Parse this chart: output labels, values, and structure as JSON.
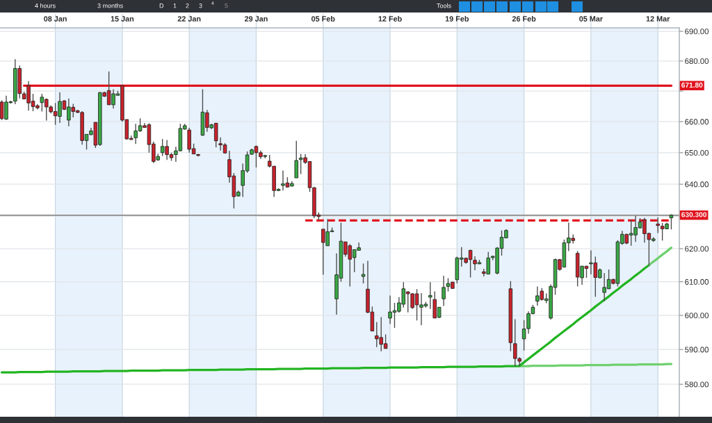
{
  "chart_data": {
    "type": "candlestick",
    "categories": [
      null,
      null,
      null,
      null,
      null,
      null,
      null,
      null,
      null,
      null,
      null,
      null,
      "08 Jan",
      null,
      null,
      null,
      null,
      null,
      null,
      null,
      null,
      null,
      null,
      null,
      null,
      null,
      null,
      "15 Jan",
      null,
      null,
      null,
      null,
      null,
      null,
      null,
      null,
      null,
      null,
      null,
      null,
      null,
      null,
      "22 Jan",
      null,
      null,
      null,
      null,
      null,
      null,
      null,
      null,
      null,
      null,
      null,
      null,
      null,
      null,
      "29 Jan",
      null,
      null,
      null,
      null,
      null,
      null,
      null,
      null,
      null,
      null,
      null,
      null,
      null,
      null,
      "05 Feb",
      null,
      null,
      null,
      null,
      null,
      null,
      null,
      null,
      null,
      null,
      null,
      null,
      null,
      null,
      "12 Feb",
      null,
      null,
      null,
      null,
      null,
      null,
      null,
      null,
      null,
      null,
      null,
      null,
      null,
      null,
      "19 Feb",
      null,
      null,
      null,
      null,
      null,
      null,
      null,
      null,
      null,
      null,
      null,
      null,
      null,
      null,
      "26 Feb",
      null,
      null,
      null,
      null,
      null,
      null,
      null,
      null,
      null,
      null,
      null,
      null,
      null,
      null,
      "05 Mar",
      null,
      null,
      null,
      null,
      null,
      null,
      null,
      null,
      null,
      null,
      null,
      null,
      null,
      null,
      "12 Mar",
      null,
      null,
      null
    ],
    "ohlc": [
      [
        666.4,
        667.0,
        660.5,
        661.0
      ],
      [
        660.8,
        668.5,
        660.6,
        666.4
      ],
      [
        666.2,
        666.8,
        665.9,
        666.5
      ],
      [
        666.7,
        680.6,
        665.7,
        677.5
      ],
      [
        677.5,
        678.5,
        667.6,
        669.2
      ],
      [
        669.1,
        669.8,
        667.3,
        667.4
      ],
      [
        671.8,
        673.3,
        663.6,
        666.1
      ],
      [
        666.7,
        669.1,
        663.4,
        664.9
      ],
      [
        665.2,
        665.7,
        664.0,
        664.5
      ],
      [
        666.2,
        669.1,
        663.3,
        668.0
      ],
      [
        667.3,
        667.6,
        660.4,
        664.8
      ],
      [
        664.8,
        665.3,
        662.7,
        663.2
      ],
      [
        663.3,
        666.1,
        659.0,
        661.9
      ],
      [
        661.7,
        669.6,
        659.6,
        666.6
      ],
      [
        666.8,
        667.0,
        663.8,
        664.0
      ],
      [
        660.5,
        667.6,
        658.5,
        664.8
      ],
      [
        664.7,
        665.8,
        661.4,
        663.3
      ],
      [
        663.6,
        663.8,
        662.8,
        663.0
      ],
      [
        663.0,
        663.4,
        652.6,
        653.9
      ],
      [
        653.9,
        655.9,
        651.0,
        655.9
      ],
      [
        655.8,
        658.0,
        655.6,
        657.0
      ],
      [
        659.8,
        659.8,
        651.5,
        652.4
      ],
      [
        652.6,
        669.7,
        652.2,
        669.5
      ],
      [
        669.5,
        669.8,
        668.1,
        668.3
      ],
      [
        670.2,
        676.5,
        665.5,
        665.5
      ],
      [
        665.5,
        670.6,
        664.3,
        669.1
      ],
      [
        668.6,
        670.1,
        668.6,
        669.1
      ],
      [
        671.8,
        671.9,
        660.0,
        660.5
      ],
      [
        660.7,
        660.7,
        654.3,
        654.4
      ],
      [
        654.6,
        655.5,
        654.2,
        654.2
      ],
      [
        654.8,
        659.3,
        652.8,
        657.0
      ],
      [
        657.0,
        661.1,
        656.7,
        658.7
      ],
      [
        658.7,
        659.5,
        658.1,
        658.1
      ],
      [
        659.0,
        659.5,
        650.0,
        652.6
      ],
      [
        652.8,
        653.6,
        646.7,
        647.2
      ],
      [
        647.7,
        649.6,
        647.4,
        648.8
      ],
      [
        650.0,
        654.4,
        648.9,
        652.0
      ],
      [
        652.0,
        654.1,
        647.7,
        649.4
      ],
      [
        649.4,
        650.0,
        647.4,
        648.4
      ],
      [
        649.4,
        651.9,
        647.1,
        650.6
      ],
      [
        650.6,
        659.3,
        650.4,
        657.8
      ],
      [
        657.6,
        659.3,
        657.4,
        658.7
      ],
      [
        657.3,
        658.0,
        650.0,
        651.1
      ],
      [
        651.3,
        652.9,
        649.6,
        649.6
      ],
      [
        649.4,
        649.6,
        648.8,
        649.1
      ],
      [
        655.6,
        670.6,
        655.4,
        663.1
      ],
      [
        662.9,
        663.8,
        656.7,
        658.1
      ],
      [
        658.0,
        659.3,
        657.6,
        659.0
      ],
      [
        659.5,
        659.6,
        651.7,
        653.8
      ],
      [
        652.9,
        654.9,
        650.7,
        652.5
      ],
      [
        652.5,
        653.1,
        649.7,
        649.9
      ],
      [
        647.8,
        650.6,
        640.5,
        642.3
      ],
      [
        642.6,
        643.5,
        632.4,
        636.1
      ],
      [
        636.3,
        638.0,
        636.1,
        637.5
      ],
      [
        639.6,
        646.5,
        636.0,
        644.3
      ],
      [
        644.2,
        650.4,
        643.6,
        649.3
      ],
      [
        649.5,
        651.3,
        649.3,
        650.9
      ],
      [
        652.0,
        652.3,
        645.3,
        650.0
      ],
      [
        650.0,
        650.7,
        648.0,
        648.7
      ],
      [
        648.8,
        649.3,
        648.2,
        649.1
      ],
      [
        647.3,
        649.3,
        645.3,
        645.7
      ],
      [
        645.7,
        645.7,
        636.0,
        638.0
      ],
      [
        638.0,
        638.7,
        637.8,
        638.4
      ],
      [
        639.6,
        644.3,
        638.0,
        640.1
      ],
      [
        640.4,
        642.2,
        639.0,
        639.1
      ],
      [
        639.4,
        640.9,
        639.3,
        640.2
      ],
      [
        642.0,
        653.8,
        642.0,
        647.5
      ],
      [
        647.8,
        649.6,
        643.2,
        648.3
      ],
      [
        648.4,
        649.5,
        646.4,
        646.9
      ],
      [
        647.2,
        647.2,
        637.6,
        638.9
      ],
      [
        638.9,
        639.1,
        629.4,
        630.1
      ],
      [
        630.4,
        631.2,
        628.8,
        629.9
      ],
      [
        626.0,
        626.0,
        612.1,
        621.9
      ],
      [
        620.9,
        629.1,
        620.9,
        625.2
      ],
      [
        625.2,
        626.5,
        625.1,
        625.5
      ],
      [
        604.9,
        618.6,
        600.2,
        612.1
      ],
      [
        611.1,
        628.0,
        610.0,
        622.3
      ],
      [
        622.1,
        622.1,
        617.6,
        618.3
      ],
      [
        620.9,
        621.4,
        608.6,
        616.8
      ],
      [
        617.3,
        619.8,
        612.9,
        619.7
      ],
      [
        619.5,
        621.9,
        619.5,
        620.3
      ],
      [
        611.6,
        615.5,
        609.5,
        612.2
      ],
      [
        607.8,
        616.3,
        600.6,
        600.9
      ],
      [
        601.0,
        602.6,
        595.4,
        595.4
      ],
      [
        594.0,
        598.0,
        590.7,
        593.1
      ],
      [
        593.5,
        599.5,
        589.5,
        591.5
      ],
      [
        591.7,
        594.4,
        590.3,
        590.3
      ],
      [
        599.2,
        605.9,
        597.5,
        601.0
      ],
      [
        600.9,
        603.7,
        596.3,
        601.4
      ],
      [
        601.2,
        605.4,
        600.8,
        603.7
      ],
      [
        603.3,
        609.9,
        602.3,
        607.9
      ],
      [
        607.0,
        607.1,
        600.9,
        606.4
      ],
      [
        606.4,
        606.6,
        601.9,
        602.3
      ],
      [
        606.4,
        607.8,
        598.5,
        603.1
      ],
      [
        602.4,
        606.6,
        597.1,
        603.1
      ],
      [
        602.8,
        604.0,
        602.3,
        603.3
      ],
      [
        605.4,
        609.9,
        601.9,
        605.9
      ],
      [
        604.7,
        607.1,
        599.2,
        599.2
      ],
      [
        599.4,
        602.4,
        599.2,
        602.4
      ],
      [
        604.9,
        611.8,
        602.8,
        608.3
      ],
      [
        608.6,
        611.1,
        607.1,
        609.5
      ],
      [
        609.9,
        610.0,
        607.9,
        608.0
      ],
      [
        610.6,
        617.6,
        609.5,
        617.2
      ],
      [
        616.8,
        620.5,
        614.6,
        617.2
      ],
      [
        617.1,
        617.3,
        615.5,
        615.8
      ],
      [
        619.5,
        619.7,
        611.3,
        616.7
      ],
      [
        616.5,
        617.7,
        613.5,
        615.4
      ],
      [
        615.4,
        616.6,
        615.3,
        615.8
      ],
      [
        613.0,
        613.9,
        611.6,
        612.5
      ],
      [
        612.3,
        619.0,
        612.3,
        617.2
      ],
      [
        617.3,
        617.9,
        616.5,
        617.7
      ],
      [
        612.6,
        620.5,
        612.2,
        620.2
      ],
      [
        620.1,
        625.6,
        617.9,
        623.5
      ],
      [
        623.3,
        626.0,
        623.2,
        625.6
      ],
      [
        607.9,
        610.2,
        589.5,
        592.0
      ],
      [
        591.7,
        598.9,
        585.1,
        587.4
      ],
      [
        587.4,
        587.8,
        585.1,
        586.6
      ],
      [
        593.1,
        598.6,
        589.7,
        596.0
      ],
      [
        596.1,
        601.2,
        594.6,
        600.5
      ],
      [
        600.5,
        603.1,
        600.3,
        602.4
      ],
      [
        604.2,
        608.6,
        602.9,
        605.8
      ],
      [
        607.2,
        608.1,
        604.4,
        604.7
      ],
      [
        604.4,
        606.5,
        603.6,
        604.9
      ],
      [
        599.2,
        609.2,
        598.8,
        608.6
      ],
      [
        608.3,
        617.0,
        606.1,
        616.7
      ],
      [
        616.7,
        616.9,
        613.3,
        613.7
      ],
      [
        614.4,
        622.8,
        614.4,
        621.8
      ],
      [
        621.8,
        628.0,
        619.3,
        623.3
      ],
      [
        623.2,
        624.4,
        621.6,
        622.5
      ],
      [
        618.6,
        619.3,
        608.6,
        611.4
      ],
      [
        611.2,
        614.8,
        609.1,
        614.7
      ],
      [
        614.7,
        614.8,
        611.2,
        614.0
      ],
      [
        615.4,
        619.5,
        612.2,
        615.7
      ],
      [
        615.7,
        617.6,
        605.5,
        611.3
      ],
      [
        611.2,
        614.0,
        611.0,
        613.6
      ],
      [
        606.8,
        612.6,
        604.2,
        608.3
      ],
      [
        607.9,
        613.7,
        607.8,
        610.7
      ],
      [
        610.7,
        610.9,
        609.2,
        609.5
      ],
      [
        609.5,
        622.6,
        608.6,
        622.1
      ],
      [
        621.6,
        625.5,
        621.2,
        624.4
      ],
      [
        624.4,
        624.6,
        621.4,
        621.7
      ],
      [
        624.2,
        628.9,
        620.9,
        624.7
      ],
      [
        624.2,
        630.1,
        622.1,
        626.5
      ],
      [
        626.4,
        629.4,
        626.2,
        628.2
      ],
      [
        628.9,
        629.5,
        621.9,
        624.6
      ],
      [
        624.7,
        624.9,
        614.7,
        622.8
      ],
      [
        622.5,
        623.5,
        622.1,
        623.0
      ],
      [
        627.6,
        629.6,
        624.8,
        627.1
      ],
      [
        626.9,
        627.9,
        622.5,
        626.1
      ],
      [
        626.1,
        628.0,
        626.0,
        627.6
      ],
      [
        629.5,
        630.6,
        625.9,
        630.3
      ]
    ],
    "colors": [
      "#c8232d",
      "#3aa845",
      "#3aa845",
      "#3aa845",
      "#c8232d",
      "#c8232d",
      "#c8232d",
      "#c8232d",
      "#c8232d",
      "#3aa845",
      "#c8232d",
      "#c8232d",
      "#c8232d",
      "#3aa845",
      "#c8232d",
      "#3aa845",
      "#c8232d",
      "#c8232d",
      "#c8232d",
      "#3aa845",
      "#3aa845",
      "#c8232d",
      "#3aa845",
      "#c8232d",
      "#c8232d",
      "#3aa845",
      "#3aa845",
      "#c8232d",
      "#c8232d",
      "#c8232d",
      "#3aa845",
      "#3aa845",
      "#c8232d",
      "#c8232d",
      "#c8232d",
      "#3aa845",
      "#3aa845",
      "#c8232d",
      "#c8232d",
      "#3aa845",
      "#3aa845",
      "#3aa845",
      "#c8232d",
      "#c8232d",
      "#c8232d",
      "#3aa845",
      "#c8232d",
      "#3aa845",
      "#c8232d",
      "#c8232d",
      "#c8232d",
      "#c8232d",
      "#c8232d",
      "#3aa845",
      "#3aa845",
      "#3aa845",
      "#3aa845",
      "#c8232d",
      "#c8232d",
      "#3aa845",
      "#c8232d",
      "#c8232d",
      "#3aa845",
      "#3aa845",
      "#c8232d",
      "#3aa845",
      "#3aa845",
      "#3aa845",
      "#c8232d",
      "#c8232d",
      "#c8232d",
      "#c8232d",
      "#c8232d",
      "#3aa845",
      "#3aa845",
      "#3aa845",
      "#3aa845",
      "#c8232d",
      "#c8232d",
      "#3aa845",
      "#3aa845",
      "#3aa845",
      "#c8232d",
      "#c8232d",
      "#c8232d",
      "#c8232d",
      "#c8232d",
      "#3aa845",
      "#3aa845",
      "#3aa845",
      "#3aa845",
      "#c8232d",
      "#c8232d",
      "#c8232d",
      "#3aa845",
      "#3aa845",
      "#3aa845",
      "#c8232d",
      "#3aa845",
      "#3aa845",
      "#3aa845",
      "#c8232d",
      "#3aa845",
      "#3aa845",
      "#c8232d",
      "#c8232d",
      "#c8232d",
      "#3aa845",
      "#c8232d",
      "#3aa845",
      "#3aa845",
      "#3aa845",
      "#3aa845",
      "#3aa845",
      "#c8232d",
      "#c8232d",
      "#c8232d",
      "#3aa845",
      "#3aa845",
      "#3aa845",
      "#3aa845",
      "#c8232d",
      "#3aa845",
      "#3aa845",
      "#3aa845",
      "#c8232d",
      "#3aa845",
      "#3aa845",
      "#c8232d",
      "#c8232d",
      "#3aa845",
      "#c8232d",
      "#3aa845",
      "#c8232d",
      "#3aa845",
      "#3aa845",
      "#3aa845",
      "#c8232d",
      "#3aa845",
      "#3aa845",
      "#c8232d",
      "#3aa845",
      "#3aa845",
      "#3aa845",
      "#c8232d",
      "#c8232d",
      "#3aa845",
      "#c8232d",
      "#c8232d",
      "#3aa845",
      "#3aa845"
    ],
    "series": [
      {
        "type": "line",
        "color": "#e0141e",
        "values": [
          null,
          null,
          null,
          null,
          null,
          671.8,
          671.8,
          671.8,
          671.8,
          671.8,
          671.8,
          671.8,
          671.8,
          671.8,
          671.8,
          671.8,
          671.8,
          671.8,
          671.8,
          671.8,
          671.8,
          671.8,
          671.8,
          671.8,
          671.8,
          671.8,
          671.8,
          671.8,
          671.8,
          671.8,
          671.8,
          671.8,
          671.8,
          671.8,
          671.8,
          671.8,
          671.8,
          671.8,
          671.8,
          671.8,
          671.8,
          671.8,
          671.8,
          671.8,
          671.8,
          671.8,
          671.8,
          671.8,
          671.8,
          671.8,
          671.8,
          671.8,
          671.8,
          671.8,
          671.8,
          671.8,
          671.8,
          671.8,
          671.8,
          671.8,
          671.8,
          671.8,
          671.8,
          671.8,
          671.8,
          671.8,
          671.8,
          671.8,
          671.8,
          671.8,
          671.8,
          671.8,
          671.8,
          671.8,
          671.8,
          671.8,
          671.8,
          671.8,
          671.8,
          671.8,
          671.8,
          671.8,
          671.8,
          671.8,
          671.8,
          671.8,
          671.8,
          671.8,
          671.8,
          671.8,
          671.8,
          671.8,
          671.8,
          671.8,
          671.8,
          671.8,
          671.8,
          671.8,
          671.8,
          671.8,
          671.8,
          671.8,
          671.8,
          671.8,
          671.8,
          671.8,
          671.8,
          671.8,
          671.8,
          671.8,
          671.8,
          671.8,
          671.8,
          671.8,
          671.8,
          671.8,
          671.8,
          671.8,
          671.8,
          671.8,
          671.8,
          671.8,
          671.8,
          671.8,
          671.8,
          671.8,
          671.8,
          671.8,
          671.8,
          671.8,
          671.8,
          671.8,
          671.8,
          671.8,
          671.8,
          671.8,
          671.8,
          671.8,
          671.8,
          671.8,
          671.8,
          671.8,
          671.8,
          671.8,
          671.8,
          671.8,
          671.8,
          671.8,
          671.8,
          671.8,
          671.8
        ]
      },
      {
        "type": "line",
        "color": "#e0141e",
        "line_style": "dashed",
        "values": [
          null,
          null,
          null,
          null,
          null,
          null,
          null,
          null,
          null,
          null,
          null,
          null,
          null,
          null,
          null,
          null,
          null,
          null,
          null,
          null,
          null,
          null,
          null,
          null,
          null,
          null,
          null,
          null,
          null,
          null,
          null,
          null,
          null,
          null,
          null,
          null,
          null,
          null,
          null,
          null,
          null,
          null,
          null,
          null,
          null,
          null,
          null,
          null,
          null,
          null,
          null,
          null,
          null,
          null,
          null,
          null,
          null,
          null,
          null,
          null,
          null,
          null,
          null,
          null,
          null,
          null,
          null,
          null,
          628.7,
          628.7,
          628.7,
          628.7,
          628.7,
          628.7,
          628.7,
          628.7,
          628.7,
          628.7,
          628.7,
          628.7,
          628.7,
          628.7,
          628.7,
          628.7,
          628.7,
          628.7,
          628.7,
          628.7,
          628.7,
          628.7,
          628.7,
          628.7,
          628.7,
          628.7,
          628.7,
          628.7,
          628.7,
          628.7,
          628.7,
          628.7,
          628.7,
          628.7,
          628.7,
          628.7,
          628.7,
          628.7,
          628.7,
          628.7,
          628.7,
          628.7,
          628.7,
          628.7,
          628.7,
          628.7,
          628.7,
          628.7,
          628.7,
          628.7,
          628.7,
          628.7,
          628.7,
          628.7,
          628.7,
          628.7,
          628.7,
          628.7,
          628.7,
          628.7,
          628.7,
          628.7,
          628.7,
          628.7,
          628.7,
          628.7,
          628.7,
          628.7,
          628.7,
          628.7,
          628.7,
          628.7,
          628.7,
          628.7,
          628.7,
          628.7,
          628.7,
          628.7,
          628.7,
          628.7,
          628.7,
          628.7,
          628.7
        ]
      },
      {
        "type": "line",
        "color": "#22b422",
        "values": [
          583.4,
          583.4,
          583.4,
          583.4,
          583.5,
          583.5,
          583.5,
          583.5,
          583.5,
          583.5,
          583.6,
          583.6,
          583.6,
          583.6,
          583.6,
          583.6,
          583.7,
          583.7,
          583.7,
          583.7,
          583.7,
          583.7,
          583.7,
          583.8,
          583.8,
          583.8,
          583.8,
          583.8,
          583.8,
          583.9,
          583.9,
          583.9,
          583.9,
          583.9,
          583.9,
          583.9,
          584.0,
          584.0,
          584.0,
          584.0,
          584.0,
          584.0,
          584.1,
          584.1,
          584.1,
          584.1,
          584.1,
          584.1,
          584.1,
          584.2,
          584.2,
          584.2,
          584.2,
          584.2,
          584.2,
          584.3,
          584.3,
          584.3,
          584.3,
          584.3,
          584.3,
          584.3,
          584.4,
          584.4,
          584.4,
          584.4,
          584.4,
          584.4,
          584.5,
          584.5,
          584.5,
          584.5,
          584.5,
          584.5,
          584.6,
          584.6,
          584.6,
          584.6,
          584.6,
          584.6,
          584.6,
          584.7,
          584.7,
          584.7,
          584.7,
          584.7,
          584.7,
          584.8,
          584.8,
          584.8,
          584.8,
          584.8,
          584.8,
          584.8,
          584.9,
          584.9,
          584.9,
          584.9,
          584.9,
          584.9,
          585.0,
          585.0,
          585.0,
          585.0,
          585.0,
          585.0,
          585.0,
          585.1,
          585.1,
          585.1,
          585.1,
          585.1,
          585.1,
          585.2,
          585.2,
          585.2,
          585.2,
          null,
          null,
          null,
          null,
          null,
          null,
          null,
          null,
          null,
          null,
          null,
          null,
          null,
          null,
          null,
          null,
          null,
          null,
          null,
          null,
          null,
          null,
          null,
          null,
          null,
          null,
          null,
          null,
          null,
          null,
          null,
          null,
          null,
          null
        ]
      },
      {
        "type": "line",
        "color": "#6fd06f",
        "values": [
          null,
          null,
          null,
          null,
          null,
          null,
          null,
          null,
          null,
          null,
          null,
          null,
          null,
          null,
          null,
          null,
          null,
          null,
          null,
          null,
          null,
          null,
          null,
          null,
          null,
          null,
          null,
          null,
          null,
          null,
          null,
          null,
          null,
          null,
          null,
          null,
          null,
          null,
          null,
          null,
          null,
          null,
          null,
          null,
          null,
          null,
          null,
          null,
          null,
          null,
          null,
          null,
          null,
          null,
          null,
          null,
          null,
          null,
          null,
          null,
          null,
          null,
          null,
          null,
          null,
          null,
          null,
          null,
          null,
          null,
          null,
          null,
          null,
          null,
          null,
          null,
          null,
          null,
          null,
          null,
          null,
          null,
          null,
          null,
          null,
          null,
          null,
          null,
          null,
          null,
          null,
          null,
          null,
          null,
          null,
          null,
          null,
          null,
          null,
          null,
          null,
          null,
          null,
          null,
          null,
          null,
          null,
          null,
          null,
          null,
          null,
          null,
          null,
          null,
          null,
          null,
          585.2,
          585.2,
          585.2,
          585.3,
          585.3,
          585.3,
          585.3,
          585.3,
          585.3,
          585.4,
          585.4,
          585.4,
          585.4,
          585.4,
          585.4,
          585.5,
          585.5,
          585.5,
          585.5,
          585.5,
          585.5,
          585.6,
          585.6,
          585.6,
          585.6,
          585.6,
          585.6,
          585.7,
          585.7,
          585.7,
          585.7,
          585.7,
          585.7,
          585.8,
          585.8
        ]
      },
      {
        "type": "line",
        "color": "#22b422",
        "values": [
          null,
          null,
          null,
          null,
          null,
          null,
          null,
          null,
          null,
          null,
          null,
          null,
          null,
          null,
          null,
          null,
          null,
          null,
          null,
          null,
          null,
          null,
          null,
          null,
          null,
          null,
          null,
          null,
          null,
          null,
          null,
          null,
          null,
          null,
          null,
          null,
          null,
          null,
          null,
          null,
          null,
          null,
          null,
          null,
          null,
          null,
          null,
          null,
          null,
          null,
          null,
          null,
          null,
          null,
          null,
          null,
          null,
          null,
          null,
          null,
          null,
          null,
          null,
          null,
          null,
          null,
          null,
          null,
          null,
          null,
          null,
          null,
          null,
          null,
          null,
          null,
          null,
          null,
          null,
          null,
          null,
          null,
          null,
          null,
          null,
          null,
          null,
          null,
          null,
          null,
          null,
          null,
          null,
          null,
          null,
          null,
          null,
          null,
          null,
          null,
          null,
          null,
          null,
          null,
          null,
          null,
          null,
          null,
          null,
          null,
          null,
          null,
          null,
          null,
          null,
          null,
          585.3,
          586.3,
          587.3,
          588.3,
          589.3,
          590.3,
          591.3,
          592.3,
          593.4,
          594.4,
          595.4,
          596.4,
          597.4,
          598.5,
          599.5,
          600.5,
          601.5,
          602.6,
          603.6,
          604.6,
          605.6,
          606.7,
          607.7,
          608.8,
          609.8,
          610.8,
          611.9,
          612.9,
          614.0,
          615.0,
          null,
          null,
          null,
          null,
          null
        ]
      },
      {
        "type": "line",
        "color": "#6fd06f",
        "values": [
          null,
          null,
          null,
          null,
          null,
          null,
          null,
          null,
          null,
          null,
          null,
          null,
          null,
          null,
          null,
          null,
          null,
          null,
          null,
          null,
          null,
          null,
          null,
          null,
          null,
          null,
          null,
          null,
          null,
          null,
          null,
          null,
          null,
          null,
          null,
          null,
          null,
          null,
          null,
          null,
          null,
          null,
          null,
          null,
          null,
          null,
          null,
          null,
          null,
          null,
          null,
          null,
          null,
          null,
          null,
          null,
          null,
          null,
          null,
          null,
          null,
          null,
          null,
          null,
          null,
          null,
          null,
          null,
          null,
          null,
          null,
          null,
          null,
          null,
          null,
          null,
          null,
          null,
          null,
          null,
          null,
          null,
          null,
          null,
          null,
          null,
          null,
          null,
          null,
          null,
          null,
          null,
          null,
          null,
          null,
          null,
          null,
          null,
          null,
          null,
          null,
          null,
          null,
          null,
          null,
          null,
          null,
          null,
          null,
          null,
          null,
          null,
          null,
          null,
          null,
          null,
          null,
          null,
          null,
          null,
          null,
          null,
          null,
          null,
          null,
          null,
          null,
          null,
          null,
          null,
          null,
          null,
          null,
          null,
          null,
          null,
          null,
          null,
          null,
          null,
          null,
          null,
          null,
          null,
          null,
          615.0,
          616.1,
          617.1,
          618.2,
          619.2,
          620.3
        ]
      }
    ],
    "ref_lines": [
      {
        "axis": "y",
        "value": 630.3,
        "label": "630.300",
        "color": "#8a8a8a"
      }
    ],
    "bands": [
      {
        "axis": "x",
        "from": "08 Jan",
        "to": "15 Jan",
        "color": "#e8f2fc"
      },
      {
        "axis": "x",
        "from": "22 Jan",
        "to": "29 Jan",
        "color": "#e8f2fc"
      },
      {
        "axis": "x",
        "from": "05 Feb",
        "to": "12 Feb",
        "color": "#e8f2fc"
      },
      {
        "axis": "x",
        "from": "19 Feb",
        "to": "26 Feb",
        "color": "#e8f2fc"
      },
      {
        "axis": "x",
        "from": "05 Mar",
        "to": "12 Mar",
        "color": "#e8f2fc"
      }
    ],
    "annotations": [
      "4 hours",
      "3 months",
      "D",
      "1",
      "2",
      "3",
      "4",
      "5",
      "Tools",
      {
        "text": "671.80",
        "y": 671.8
      }
    ],
    "ylim": [
      570.8,
      691.2
    ],
    "yticks": [
      {
        "value": 580,
        "label": "580.00"
      },
      {
        "value": 590,
        "label": "590.00"
      },
      {
        "value": 600,
        "label": "600.00"
      },
      {
        "value": 610,
        "label": "610.00"
      },
      {
        "value": 620,
        "label": "620.00"
      },
      {
        "value": 630,
        "label": null
      },
      {
        "value": 640,
        "label": "640.00"
      },
      {
        "value": 650,
        "label": "650.00"
      },
      {
        "value": 660,
        "label": "660.00"
      },
      {
        "value": 670,
        "label": null
      },
      {
        "value": 680,
        "label": "680.00"
      },
      {
        "value": 690,
        "label": "690.00"
      }
    ],
    "log": true,
    "grid": true
  }
}
